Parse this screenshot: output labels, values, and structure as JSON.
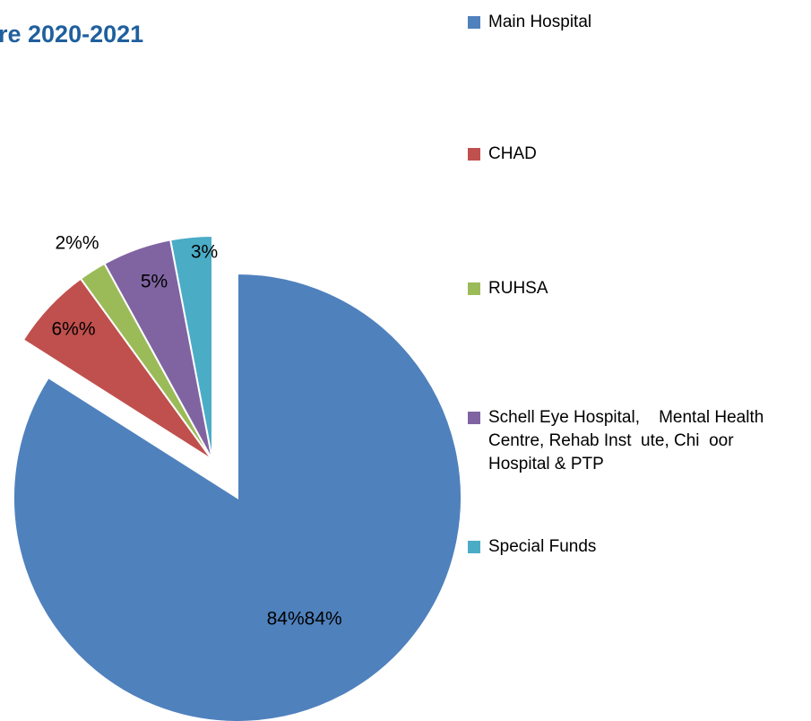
{
  "chart_data": {
    "type": "pie",
    "title": "re 2020-2021",
    "categories": [
      "Main Hospital",
      "CHAD",
      "RUHSA",
      "Schell Eye Hospital,    Mental Health Centre, Rehab Inst  ute, Chi  oor Hospital & PTP",
      "Special Funds"
    ],
    "values": [
      84,
      6,
      2,
      5,
      3
    ],
    "value_labels": [
      "84%84%",
      "6%%",
      "2%%",
      "5%",
      "3%"
    ],
    "colors": [
      "#4f81bd",
      "#c0504d",
      "#9bbb59",
      "#8064a2",
      "#4bacc6"
    ],
    "legend": "right"
  }
}
